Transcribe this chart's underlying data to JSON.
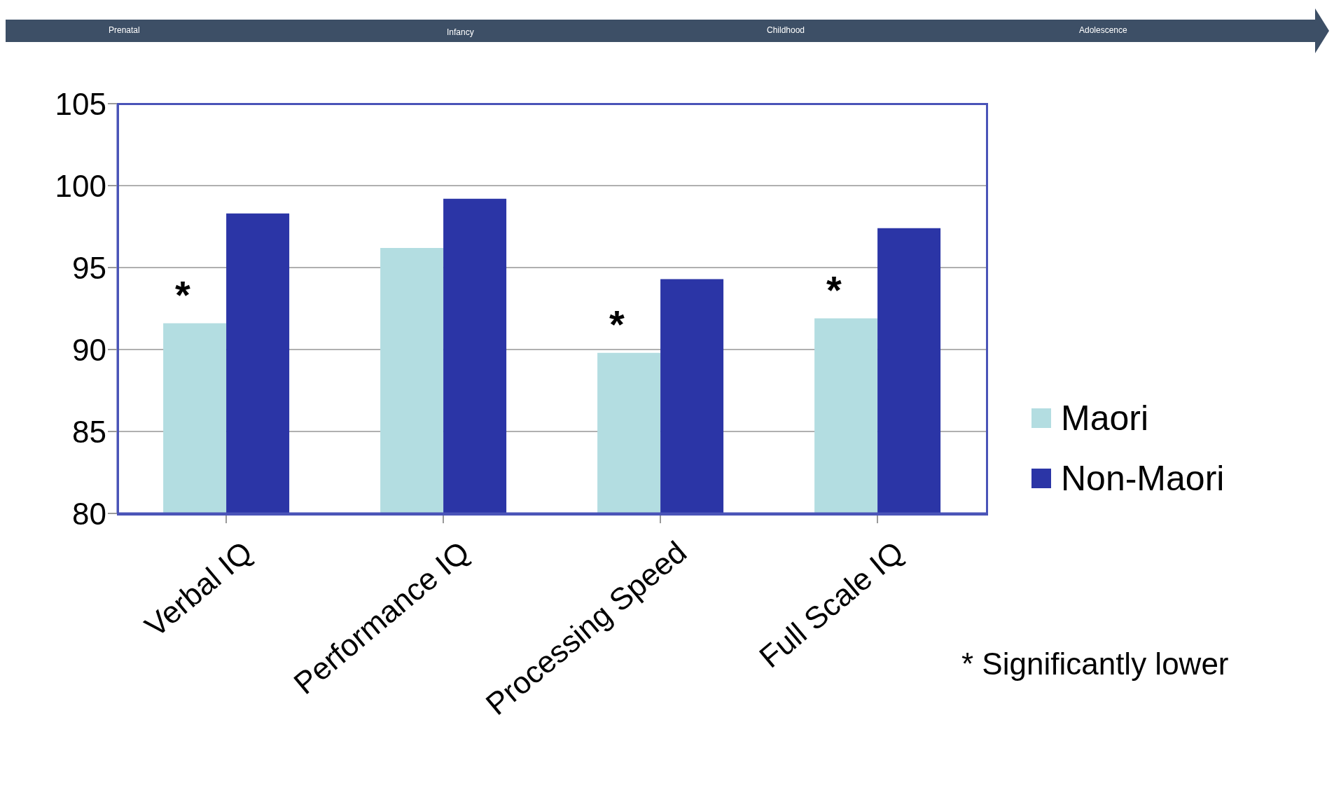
{
  "chart_data": {
    "type": "bar",
    "categories": [
      "Verbal IQ",
      "Performance IQ",
      "Processing Speed",
      "Full Scale IQ"
    ],
    "series": [
      {
        "name": "Maori",
        "color": "#b3dde1",
        "values": [
          91.6,
          96.2,
          89.8,
          91.9
        ]
      },
      {
        "name": "Non-Maori",
        "color": "#2b35a6",
        "values": [
          98.3,
          99.2,
          94.3,
          97.4
        ]
      }
    ],
    "ylim": [
      80,
      105
    ],
    "yticks": [
      80,
      85,
      90,
      95,
      100,
      105
    ],
    "grid": "y",
    "legend": "right",
    "annotations": [
      "Prenatal",
      "Infancy",
      "Childhood",
      "Adolescence",
      {
        "text": "*",
        "x": "Verbal IQ",
        "y": 91.6
      },
      {
        "text": "*",
        "x": "Processing Speed",
        "y": 89.8
      },
      {
        "text": "*",
        "x": "Full Scale IQ",
        "y": 91.9
      },
      "* Significantly lower"
    ]
  }
}
